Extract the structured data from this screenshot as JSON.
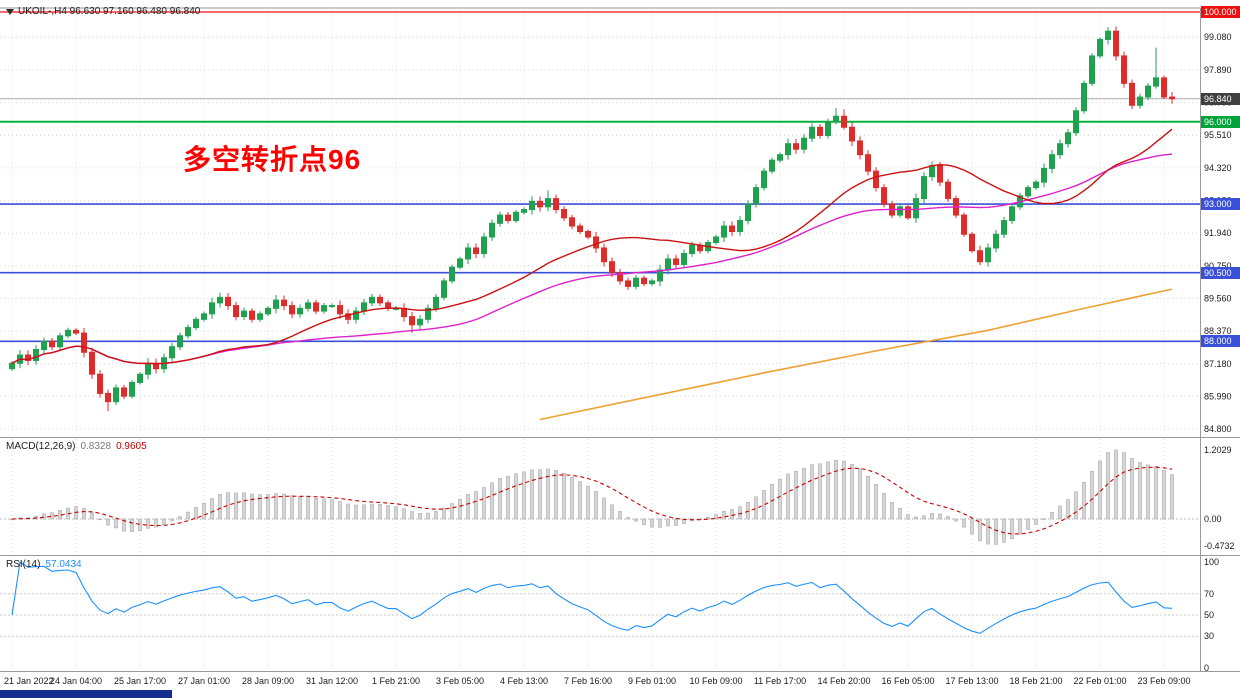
{
  "header": {
    "symbol_info": "UKOIL-,H4 96.630 97.160 96.480 96.840"
  },
  "annotation": {
    "text": "多空转折点96",
    "color": "#ff0000"
  },
  "indicators": {
    "macd": {
      "name": "MACD(12,26,9)",
      "values": [
        "0.8328",
        "0.9605"
      ],
      "axis": [
        "1.2029",
        "0.00",
        "-0.4732"
      ]
    },
    "rsi": {
      "name": "RSI(14)",
      "value": "57.0434",
      "axis": [
        "100",
        "70",
        "50",
        "30",
        "0"
      ],
      "levels": [
        70,
        50,
        30
      ]
    }
  },
  "chart_data": {
    "type": "candlestick",
    "symbol": "UKOIL-",
    "timeframe": "H4",
    "ohlc_current": {
      "open": "96.630",
      "high": "97.160",
      "low": "96.480",
      "close": "96.840"
    },
    "x_ticks": [
      "21 Jan 2022",
      "24 Jan 04:00",
      "25 Jan 17:00",
      "27 Jan 01:00",
      "28 Jan 09:00",
      "31 Jan 12:00",
      "1 Feb 21:00",
      "3 Feb 05:00",
      "4 Feb 13:00",
      "7 Feb 16:00",
      "9 Feb 01:00",
      "10 Feb 09:00",
      "11 Feb 17:00",
      "14 Feb 20:00",
      "16 Feb 05:00",
      "17 Feb 13:00",
      "18 Feb 21:00",
      "22 Feb 01:00",
      "23 Feb 09:00"
    ],
    "price_ticks": [
      "99.080",
      "97.890",
      "96.700",
      "95.510",
      "94.320",
      "93.130",
      "91.940",
      "90.750",
      "89.560",
      "88.370",
      "87.180",
      "85.990",
      "84.800"
    ],
    "levels": [
      {
        "label": "100.000",
        "value": 100.0,
        "role": "resistance-line",
        "line": "#ee1111",
        "badge": "#ee1111",
        "width": 1.2
      },
      {
        "label": "96.840",
        "value": 96.84,
        "role": "current-price",
        "line": "#aaaaaa",
        "badge": "#404040",
        "width": 1
      },
      {
        "label": "96.000",
        "value": 96.0,
        "role": "pivot-line",
        "line": "#00b33c",
        "badge": "#00a33a",
        "width": 2
      },
      {
        "label": "93.000",
        "value": 93.0,
        "role": "support-line",
        "line": "#3a50d9",
        "badge": "#3a50d9",
        "width": 1.6
      },
      {
        "label": "90.500",
        "value": 90.5,
        "role": "support-line",
        "line": "#3a50d9",
        "badge": "#3a50d9",
        "width": 1.6
      },
      {
        "label": "88.000",
        "value": 88.0,
        "role": "support-line",
        "line": "#3a50d9",
        "badge": "#3a50d9",
        "width": 1.6
      }
    ],
    "candles": {
      "first_open": 87.0,
      "closes": [
        87.2,
        87.5,
        87.3,
        87.7,
        88.0,
        87.8,
        88.2,
        88.4,
        88.3,
        87.6,
        86.8,
        86.1,
        85.8,
        86.3,
        86.0,
        86.5,
        86.8,
        87.2,
        87.0,
        87.4,
        87.8,
        88.2,
        88.5,
        88.8,
        89.0,
        89.4,
        89.6,
        89.3,
        88.9,
        89.1,
        88.8,
        89.0,
        89.2,
        89.5,
        89.3,
        89.0,
        89.2,
        89.4,
        89.1,
        89.3,
        89.3,
        89.0,
        88.8,
        89.1,
        89.4,
        89.6,
        89.4,
        89.2,
        89.2,
        88.9,
        88.6,
        88.8,
        89.2,
        89.6,
        90.2,
        90.7,
        91.0,
        91.4,
        91.2,
        91.8,
        92.3,
        92.6,
        92.4,
        92.7,
        92.8,
        93.1,
        92.9,
        93.2,
        92.8,
        92.5,
        92.2,
        92.0,
        91.8,
        91.4,
        90.9,
        90.5,
        90.2,
        90.0,
        90.3,
        90.1,
        90.2,
        90.6,
        91.0,
        90.8,
        91.2,
        91.5,
        91.3,
        91.6,
        91.8,
        92.2,
        92.0,
        92.4,
        93.0,
        93.6,
        94.2,
        94.6,
        94.8,
        95.2,
        95.0,
        95.4,
        95.8,
        95.5,
        96.0,
        96.2,
        95.8,
        95.3,
        94.8,
        94.2,
        93.6,
        93.0,
        92.6,
        92.9,
        92.5,
        93.2,
        94.0,
        94.4,
        93.8,
        93.2,
        92.6,
        91.9,
        91.3,
        90.9,
        91.4,
        91.9,
        92.4,
        92.9,
        93.3,
        93.6,
        93.8,
        94.3,
        94.8,
        95.2,
        95.6,
        96.4,
        97.4,
        98.4,
        99.0,
        99.3,
        98.4,
        97.4,
        96.6,
        96.9,
        97.3,
        97.6,
        96.9,
        96.84
      ],
      "wick_overrides": {
        "12": {
          "l": 85.45
        },
        "50": {
          "l": 88.3
        },
        "67": {
          "h": 93.5
        },
        "103": {
          "h": 96.5
        },
        "104": {
          "h": 96.45
        },
        "121": {
          "l": 90.78
        },
        "137": {
          "h": 99.45
        },
        "143": {
          "h": 98.7
        }
      }
    },
    "moving_averages": {
      "fast": {
        "period": 24,
        "color": "#cc1111"
      },
      "slow": {
        "period": 48,
        "color": "#dd22cc"
      },
      "long": {
        "color": "#eda133",
        "points": [
          [
            66,
            85.15
          ],
          [
            80,
            86.0
          ],
          [
            94,
            86.85
          ],
          [
            108,
            87.65
          ],
          [
            122,
            88.4
          ],
          [
            134,
            89.2
          ],
          [
            145,
            89.9
          ]
        ]
      }
    },
    "colors": {
      "up": "#1fa14d",
      "down": "#e02b2b",
      "grid": "#d9d9d9",
      "axis_text": "#1a1a1a",
      "macd_hist_fill": "#d6d6d6",
      "macd_hist_stroke": "#a8a8a8",
      "macd_signal": "#cc0000",
      "rsi_line": "#1e90ff",
      "current_line": "#aaaaaa"
    }
  }
}
